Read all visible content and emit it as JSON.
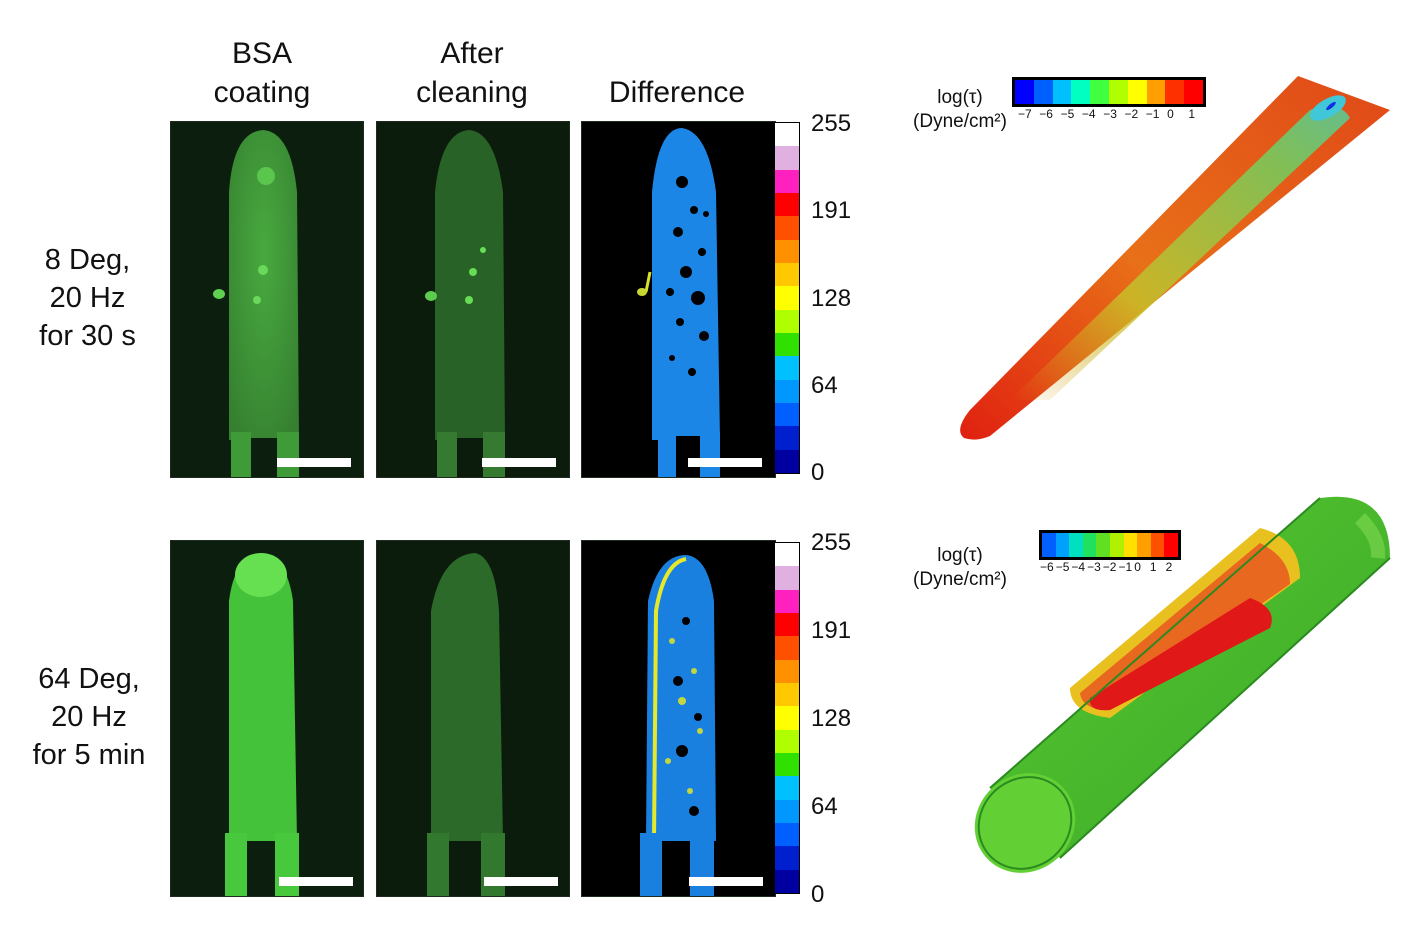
{
  "columns": [
    {
      "title": "BSA\ncoating"
    },
    {
      "title": "After\ncleaning"
    },
    {
      "title": "Difference"
    }
  ],
  "rows": [
    {
      "label": "8 Deg,\n20 Hz\nfor 30 s"
    },
    {
      "label": "64 Deg,\n20 Hz\nfor 5 min"
    }
  ],
  "colorbar": {
    "ticks": [
      "255",
      "191",
      "128",
      "64",
      "0"
    ],
    "colors": [
      "#ffffff",
      "#e0b0e0",
      "#ff20c0",
      "#ff0000",
      "#ff5000",
      "#ff9000",
      "#ffc800",
      "#ffff00",
      "#b0ff00",
      "#30e000",
      "#00c0ff",
      "#0098ff",
      "#0060ff",
      "#0020d0",
      "#0000a0"
    ]
  },
  "stress_legend_top": {
    "title": "log(τ)\n(Dyne/cm²)",
    "ticks": [
      "−7",
      "−6",
      "−5",
      "−4",
      "−3",
      "−2",
      "−1",
      "0",
      "1"
    ],
    "colors": [
      "#0000ff",
      "#0060ff",
      "#00c0ff",
      "#00ffc0",
      "#40ff40",
      "#b0ff00",
      "#ffff00",
      "#ffa000",
      "#ff3000",
      "#ff0000"
    ]
  },
  "stress_legend_bottom": {
    "title": "log(τ)\n(Dyne/cm²)",
    "ticks": [
      "−6",
      "−5",
      "−4",
      "−3",
      "−2",
      "−1",
      "0",
      "1",
      "2"
    ],
    "colors": [
      "#0060ff",
      "#00a0ff",
      "#00e0c0",
      "#20e060",
      "#60e020",
      "#b0f000",
      "#ffe000",
      "#ffa000",
      "#ff5000",
      "#ff0000"
    ]
  }
}
